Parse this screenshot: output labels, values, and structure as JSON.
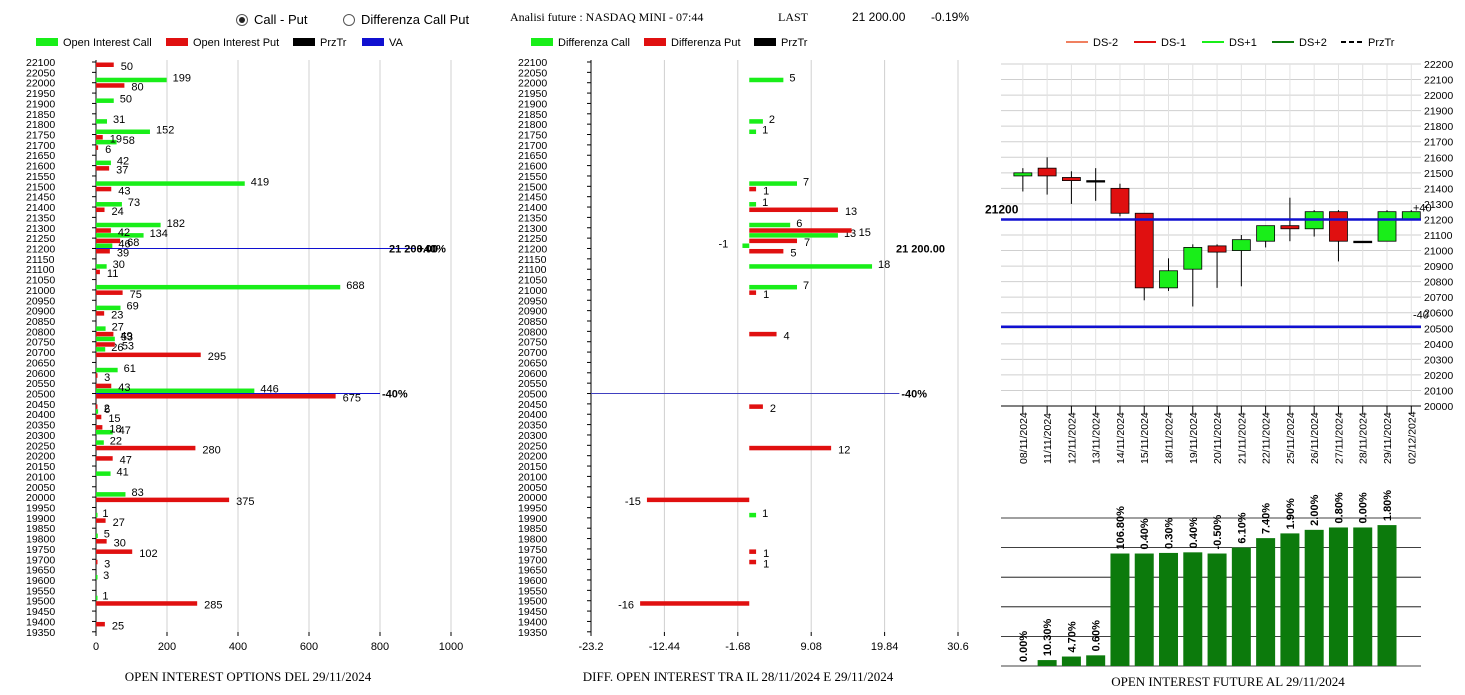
{
  "header": {
    "radio_call_put": "Call - Put",
    "radio_diff": "Differenza Call Put",
    "selected": "call_put",
    "info_label": "Analisi future : NASDAQ MINI - 07:44",
    "last_label": "LAST",
    "last_value": "21 200.00",
    "change": "-0.19%"
  },
  "colors": {
    "green": "#19ee19",
    "red": "#e01010",
    "blue": "#1010d0",
    "dark_green": "#0c7a0c"
  },
  "chart_data": [
    {
      "type": "bar",
      "orientation": "horizontal",
      "title": "OPEN INTEREST OPTIONS DEL 29/11/2024",
      "legend": [
        "Open Interest Call",
        "Open Interest Put",
        "PrzTr",
        "VA"
      ],
      "xlim": [
        0,
        1000
      ],
      "xticks": [
        "0",
        "200",
        "400",
        "600",
        "800",
        "1000"
      ],
      "ylim": [
        19350,
        22100
      ],
      "strikes": [
        "22100",
        "22050",
        "22000",
        "21950",
        "21900",
        "21850",
        "21800",
        "21750",
        "21700",
        "21650",
        "21600",
        "21550",
        "21500",
        "21450",
        "21400",
        "21350",
        "21300",
        "21250",
        "21200",
        "21150",
        "21100",
        "21050",
        "21000",
        "20950",
        "20900",
        "20850",
        "20800",
        "20750",
        "20700",
        "20650",
        "20600",
        "20550",
        "20500",
        "20450",
        "20400",
        "20350",
        "20300",
        "20250",
        "20200",
        "20150",
        "20100",
        "20050",
        "20000",
        "19950",
        "19900",
        "19850",
        "19800",
        "19750",
        "19700",
        "19650",
        "19600",
        "19550",
        "19500",
        "19450",
        "19400",
        "19350"
      ],
      "calls": [
        {
          "strike": 22000,
          "value": 199
        },
        {
          "strike": 21900,
          "value": 50
        },
        {
          "strike": 21800,
          "value": 31
        },
        {
          "strike": 21750,
          "value": 152
        },
        {
          "strike": 21700,
          "value": 58
        },
        {
          "strike": 21600,
          "value": 42
        },
        {
          "strike": 21500,
          "value": 419
        },
        {
          "strike": 21400,
          "value": 73
        },
        {
          "strike": 21300,
          "value": 182
        },
        {
          "strike": 21250,
          "value": 134
        },
        {
          "strike": 21200,
          "value": 46
        },
        {
          "strike": 21100,
          "value": 30
        },
        {
          "strike": 21000,
          "value": 688
        },
        {
          "strike": 20900,
          "value": 69
        },
        {
          "strike": 20800,
          "value": 27
        },
        {
          "strike": 20750,
          "value": 53
        },
        {
          "strike": 20700,
          "value": 26
        },
        {
          "strike": 20600,
          "value": 61
        },
        {
          "strike": 20500,
          "value": 446
        },
        {
          "strike": 20400,
          "value": 6
        },
        {
          "strike": 20300,
          "value": 47
        },
        {
          "strike": 20250,
          "value": 22
        },
        {
          "strike": 20100,
          "value": 41
        },
        {
          "strike": 20000,
          "value": 83
        },
        {
          "strike": 19900,
          "value": 1
        },
        {
          "strike": 19800,
          "value": 5
        },
        {
          "strike": 19600,
          "value": 3
        },
        {
          "strike": 19500,
          "value": 1
        }
      ],
      "puts": [
        {
          "strike": 22100,
          "value": 50
        },
        {
          "strike": 22000,
          "value": 80
        },
        {
          "strike": 21750,
          "value": 19
        },
        {
          "strike": 21700,
          "value": 6
        },
        {
          "strike": 21600,
          "value": 37
        },
        {
          "strike": 21500,
          "value": 43
        },
        {
          "strike": 21400,
          "value": 24
        },
        {
          "strike": 21300,
          "value": 42
        },
        {
          "strike": 21250,
          "value": 68
        },
        {
          "strike": 21200,
          "value": 39
        },
        {
          "strike": 21100,
          "value": 11
        },
        {
          "strike": 21000,
          "value": 75
        },
        {
          "strike": 20900,
          "value": 23
        },
        {
          "strike": 20800,
          "value": 49
        },
        {
          "strike": 20750,
          "value": 53
        },
        {
          "strike": 20700,
          "value": 295
        },
        {
          "strike": 20600,
          "value": 3
        },
        {
          "strike": 20550,
          "value": 43
        },
        {
          "strike": 20500,
          "value": 675
        },
        {
          "strike": 20450,
          "value": 2
        },
        {
          "strike": 20400,
          "value": 15
        },
        {
          "strike": 20350,
          "value": 18
        },
        {
          "strike": 20250,
          "value": 280
        },
        {
          "strike": 20200,
          "value": 47
        },
        {
          "strike": 20000,
          "value": 375
        },
        {
          "strike": 19900,
          "value": 27
        },
        {
          "strike": 19800,
          "value": 30
        },
        {
          "strike": 19750,
          "value": 102
        },
        {
          "strike": 19700,
          "value": 3
        },
        {
          "strike": 19500,
          "value": 285
        },
        {
          "strike": 19400,
          "value": 25
        }
      ],
      "refs": [
        {
          "strike": 21200,
          "end": 900,
          "label": "+40%",
          "price_label": "21 200.00",
          "color": "#1010d0"
        },
        {
          "strike": 20500,
          "end": 800,
          "label": "-40%",
          "price_label": "",
          "color": "#1010d0"
        }
      ]
    },
    {
      "type": "bar",
      "orientation": "horizontal",
      "title": "DIFF. OPEN INTEREST TRA IL 28/11/2024 E 29/11/2024",
      "legend": [
        "Differenza Call",
        "Differenza Put",
        "PrzTr"
      ],
      "xlim": [
        -23.2,
        30.6
      ],
      "xticks": [
        "-23.2",
        "-12.44",
        "-1.68",
        "9.08",
        "19.84",
        "30.6"
      ],
      "ylim": [
        19350,
        22100
      ],
      "calls": [
        {
          "strike": 22000,
          "value": 5
        },
        {
          "strike": 21800,
          "value": 2
        },
        {
          "strike": 21750,
          "value": 1
        },
        {
          "strike": 21500,
          "value": 7
        },
        {
          "strike": 21400,
          "value": 1
        },
        {
          "strike": 21300,
          "value": 6
        },
        {
          "strike": 21250,
          "value": 13
        },
        {
          "strike": 21200,
          "value": -1
        },
        {
          "strike": 21100,
          "value": 18
        },
        {
          "strike": 21000,
          "value": 7
        },
        {
          "strike": 19900,
          "value": 1
        }
      ],
      "puts": [
        {
          "strike": 21500,
          "value": 1
        },
        {
          "strike": 21400,
          "value": 13
        },
        {
          "strike": 21300,
          "value": 15
        },
        {
          "strike": 21250,
          "value": 7
        },
        {
          "strike": 21200,
          "value": 5
        },
        {
          "strike": 21000,
          "value": 1
        },
        {
          "strike": 20800,
          "value": 4
        },
        {
          "strike": 20450,
          "value": 2
        },
        {
          "strike": 20250,
          "value": 12
        },
        {
          "strike": 20000,
          "value": -15
        },
        {
          "strike": 19750,
          "value": 1
        },
        {
          "strike": 19700,
          "value": 1
        },
        {
          "strike": 19500,
          "value": -16
        }
      ],
      "refs": [
        {
          "strike": 21200,
          "end": -23.2,
          "label": "",
          "price_label": "21 200.00",
          "color": "#000000"
        },
        {
          "strike": 20500,
          "end": 22,
          "label": "-40%",
          "price_label": "",
          "color": "#4040c0"
        }
      ]
    },
    {
      "type": "candlestick",
      "legend": [
        "DS-2",
        "DS-1",
        "DS+1",
        "DS+2",
        "PrzTr"
      ],
      "ylim": [
        20000,
        22200
      ],
      "yticks": [
        "22200",
        "22100",
        "22000",
        "21900",
        "21800",
        "21700",
        "21600",
        "21500",
        "21400",
        "21300",
        "21200",
        "21100",
        "21000",
        "20900",
        "20800",
        "20700",
        "20600",
        "20500",
        "20400",
        "20300",
        "20200",
        "20100",
        "20000"
      ],
      "dates": [
        "08/11/2024",
        "11/11/2024",
        "12/11/2024",
        "13/11/2024",
        "14/11/2024",
        "15/11/2024",
        "18/11/2024",
        "19/11/2024",
        "20/11/2024",
        "21/11/2024",
        "22/11/2024",
        "25/11/2024",
        "26/11/2024",
        "27/11/2024",
        "28/11/2024",
        "29/11/2024",
        "02/12/2024"
      ],
      "candles": [
        {
          "open": 21480,
          "close": 21500,
          "high": 21530,
          "low": 21380
        },
        {
          "open": 21530,
          "close": 21480,
          "high": 21600,
          "low": 21360
        },
        {
          "open": 21470,
          "close": 21450,
          "high": 21510,
          "low": 21300
        },
        {
          "open": 21450,
          "close": 21450,
          "high": 21530,
          "low": 21320
        },
        {
          "open": 21400,
          "close": 21240,
          "high": 21430,
          "low": 21220
        },
        {
          "open": 21240,
          "close": 20760,
          "high": 21240,
          "low": 20680
        },
        {
          "open": 20760,
          "close": 20870,
          "high": 20950,
          "low": 20740
        },
        {
          "open": 20880,
          "close": 21020,
          "high": 21040,
          "low": 20640
        },
        {
          "open": 21030,
          "close": 20990,
          "high": 21040,
          "low": 20760
        },
        {
          "open": 21000,
          "close": 21070,
          "high": 21100,
          "low": 20770
        },
        {
          "open": 21060,
          "close": 21160,
          "high": 21160,
          "low": 21020
        },
        {
          "open": 21160,
          "close": 21140,
          "high": 21340,
          "low": 21060
        },
        {
          "open": 21140,
          "close": 21250,
          "high": 21260,
          "low": 21090
        },
        {
          "open": 21250,
          "close": 21060,
          "high": 21260,
          "low": 20930
        },
        {
          "open": 21060,
          "close": 21060,
          "high": 21060,
          "low": 21060
        },
        {
          "open": 21060,
          "close": 21250,
          "high": 21260,
          "low": 21060
        },
        {
          "open": 21200,
          "close": 21250,
          "high": 21260,
          "low": 21200
        }
      ],
      "hlines": [
        {
          "value": 21200,
          "label": "+40",
          "color": "#1010d0"
        },
        {
          "value": 20510,
          "label": "-40",
          "color": "#1010d0"
        }
      ],
      "marker_label": "21200"
    },
    {
      "type": "bar",
      "title": "OPEN INTEREST FUTURE AL 29/11/2024",
      "categories": [
        "08/11/2024",
        "11/11/2024",
        "12/11/2024",
        "13/11/2024",
        "14/11/2024",
        "15/11/2024",
        "18/11/2024",
        "19/11/2024",
        "20/11/2024",
        "21/11/2024",
        "22/11/2024",
        "25/11/2024",
        "26/11/2024",
        "27/11/2024",
        "28/11/2024",
        "29/11/2024",
        "02/12/2024"
      ],
      "labels": [
        "0.00%",
        "10.30%",
        "4.70%",
        "0.60%",
        "106.80%",
        "0.40%",
        "0.30%",
        "0.40%",
        "-0.50%",
        "6.10%",
        "7.40%",
        "1.90%",
        "2.00%",
        "0.80%",
        "0.00%",
        "1.80%"
      ],
      "values": [
        0,
        5,
        8,
        9,
        95,
        95,
        95.5,
        96,
        95,
        100,
        108,
        112,
        115,
        117,
        117,
        119
      ],
      "ylim": [
        0,
        125
      ]
    }
  ]
}
